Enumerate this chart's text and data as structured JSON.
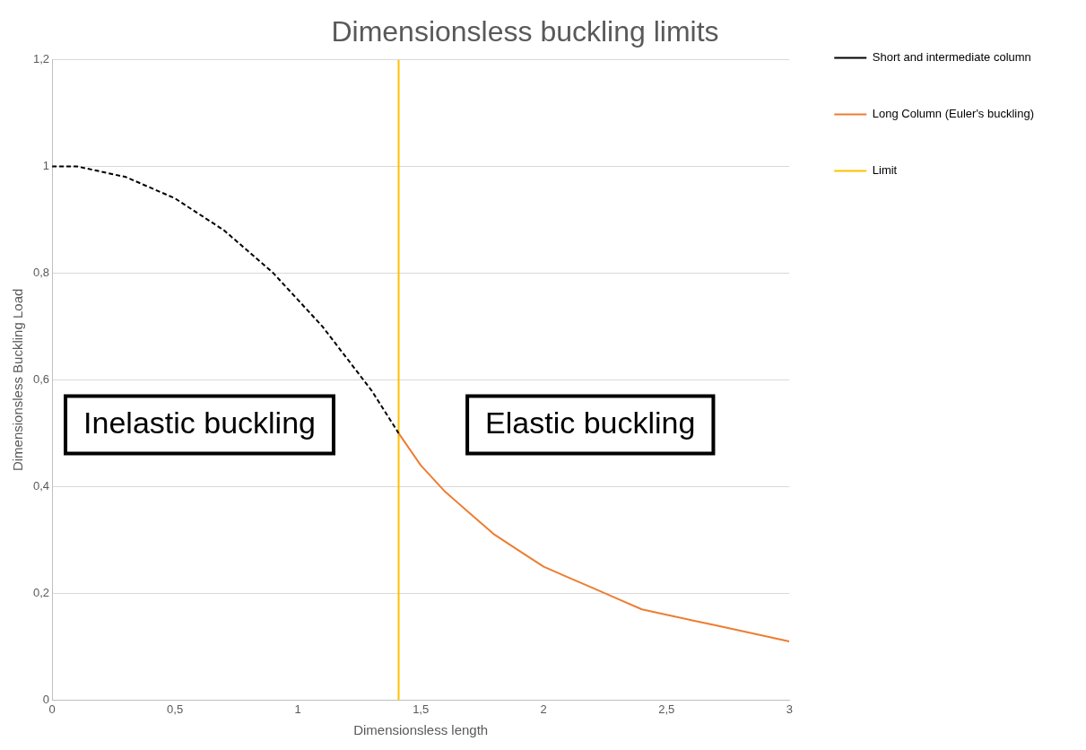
{
  "chart_data": {
    "type": "line",
    "title": "Dimensionsless buckling limits",
    "xlabel": "Dimensionsless length",
    "ylabel": "Dimensionsless Buckling Load",
    "xlim": [
      0,
      3
    ],
    "xticks": [
      0,
      {
        "value": 0.5,
        "label": "0,5"
      },
      1,
      {
        "value": 1.5,
        "label": "1,5"
      },
      2,
      {
        "value": 2.5,
        "label": "2,5"
      },
      3
    ],
    "ylim": [
      0,
      1.2
    ],
    "yticks": [
      0,
      {
        "value": 0.2,
        "label": "0,2"
      },
      {
        "value": 0.4,
        "label": "0,4"
      },
      {
        "value": 0.6,
        "label": "0,6"
      },
      {
        "value": 0.8,
        "label": "0,8"
      },
      1,
      {
        "value": 1.2,
        "label": "1,2"
      }
    ],
    "grid": "y",
    "legend": "top right",
    "marker": "none",
    "series": [
      {
        "name": "Short and intermediate column",
        "color": "#000000",
        "line_style": "dashed",
        "x": [
          0,
          0.1,
          0.2,
          0.3,
          0.4,
          0.5,
          0.6,
          0.7,
          0.8,
          0.9,
          1,
          1.1,
          1.2,
          1.3,
          1.41
        ],
        "values": [
          1,
          1,
          0.99,
          0.98,
          0.96,
          0.94,
          0.91,
          0.88,
          0.84,
          0.8,
          0.75,
          0.7,
          0.64,
          0.58,
          0.5
        ]
      },
      {
        "name": "Long Column (Euler's buckling)",
        "color": "#ed7d31",
        "line_style": "solid",
        "x": [
          1.41,
          1.5,
          1.6,
          1.7,
          1.8,
          1.9,
          2,
          2.1,
          2.2,
          2.3,
          2.4,
          2.5,
          2.6,
          2.7,
          2.8,
          2.9,
          3
        ],
        "values": [
          0.5,
          0.44,
          0.39,
          0.35,
          0.31,
          0.28,
          0.25,
          0.23,
          0.21,
          0.19,
          0.17,
          0.16,
          0.15,
          0.14,
          0.13,
          0.12,
          0.11
        ]
      },
      {
        "name": "Limit",
        "color": "#ffc000",
        "line_style": "solid",
        "x": [
          1.41,
          1.41
        ],
        "values": [
          0,
          1.2
        ]
      }
    ],
    "annotations": [
      "Inelastic buckling",
      "Elastic buckling"
    ]
  }
}
